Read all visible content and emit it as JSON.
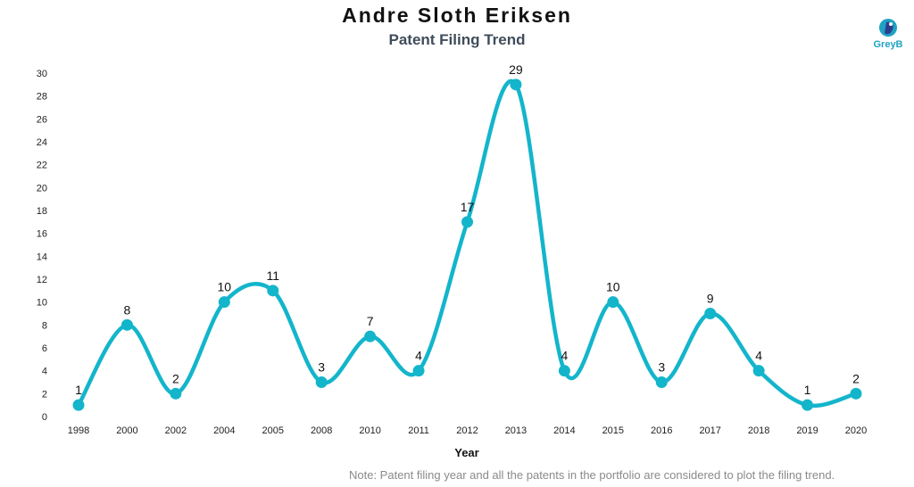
{
  "header": {
    "title": "Andre Sloth Eriksen",
    "subtitle": "Patent Filing Trend"
  },
  "logo": {
    "text": "GreyB"
  },
  "note": "Note: Patent filing year and all the patents in the portfolio are considered to plot the filing trend.",
  "colors": {
    "line": "#13b5cb",
    "point": "#13b5cb"
  },
  "chart_data": {
    "type": "line",
    "title": "Andre Sloth Eriksen",
    "subtitle": "Patent Filing Trend",
    "xlabel": "Year",
    "ylabel": "",
    "categories": [
      "1998",
      "2000",
      "2002",
      "2004",
      "2005",
      "2008",
      "2010",
      "2011",
      "2012",
      "2013",
      "2014",
      "2015",
      "2016",
      "2017",
      "2018",
      "2019",
      "2020"
    ],
    "values": [
      1,
      8,
      2,
      10,
      11,
      3,
      7,
      4,
      17,
      29,
      4,
      10,
      3,
      9,
      4,
      1,
      2
    ],
    "ylim": [
      0,
      30
    ],
    "yticks": [
      "0",
      "2",
      "4",
      "6",
      "8",
      "10",
      "12",
      "14",
      "16",
      "18",
      "20",
      "22",
      "24",
      "26",
      "28",
      "30"
    ],
    "grid": false,
    "legend": "none"
  }
}
